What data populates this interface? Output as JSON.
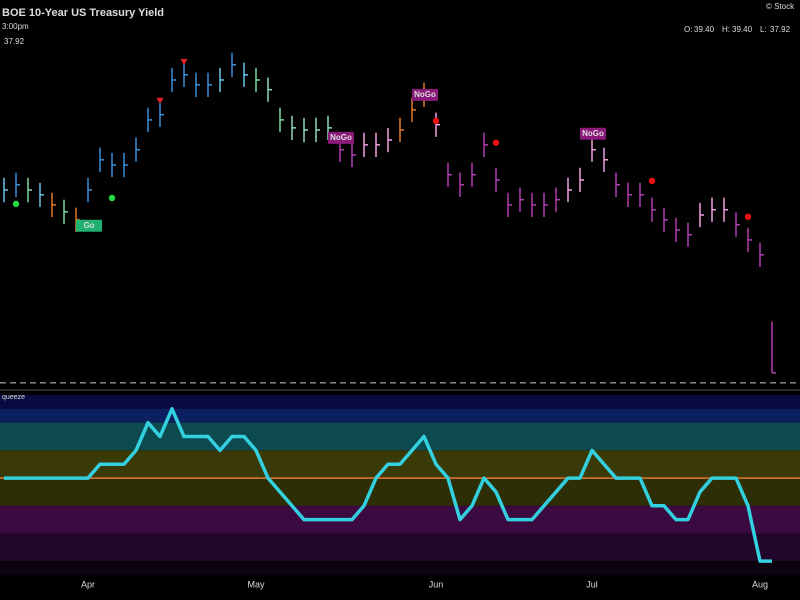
{
  "chart_data": [
    {
      "type": "ohlc",
      "title": "BOE 10-Year US Treasury Yield",
      "time": "3:00pm",
      "last": "37.92",
      "source": "© Stock",
      "ohlc": [
        {
          "label": "O:",
          "value": "39.40"
        },
        {
          "label": "H:",
          "value": "39.40"
        },
        {
          "label": "L:",
          "value": "37.92"
        }
      ],
      "categories": [
        null,
        null,
        null,
        null,
        null,
        null,
        null,
        "Apr",
        null,
        null,
        null,
        null,
        null,
        null,
        null,
        null,
        null,
        null,
        null,
        null,
        null,
        "May",
        null,
        null,
        null,
        null,
        null,
        null,
        null,
        null,
        null,
        null,
        null,
        null,
        null,
        null,
        "Jun",
        null,
        null,
        null,
        null,
        null,
        null,
        null,
        null,
        null,
        null,
        null,
        null,
        "Jul",
        null,
        null,
        null,
        null,
        null,
        null,
        null,
        null,
        null,
        null,
        null,
        null,
        null,
        "Aug",
        null
      ],
      "high": [
        43.54,
        43.69,
        43.54,
        43.4,
        43.11,
        42.91,
        42.68,
        43.54,
        44.41,
        44.26,
        44.26,
        44.7,
        45.56,
        45.71,
        46.71,
        46.86,
        46.57,
        46.57,
        46.71,
        47.15,
        46.86,
        46.71,
        46.43,
        45.56,
        45.33,
        45.27,
        45.27,
        45.33,
        44.7,
        44.55,
        44.84,
        44.84,
        44.98,
        45.27,
        45.85,
        46.28,
        45.42,
        43.98,
        43.69,
        43.98,
        44.84,
        43.83,
        43.11,
        43.26,
        43.11,
        43.11,
        43.26,
        43.54,
        43.83,
        44.7,
        44.41,
        43.69,
        43.4,
        43.4,
        42.97,
        42.68,
        42.39,
        42.25,
        42.82,
        42.97,
        42.97,
        42.54,
        42.1,
        41.67,
        39.4
      ],
      "low": [
        42.84,
        42.99,
        42.84,
        42.7,
        42.41,
        42.21,
        41.98,
        42.84,
        43.71,
        43.56,
        43.56,
        44.0,
        44.86,
        45.01,
        46.01,
        46.16,
        45.87,
        45.87,
        46.01,
        46.45,
        46.16,
        46.01,
        45.73,
        44.86,
        44.63,
        44.57,
        44.57,
        44.63,
        44.0,
        43.85,
        44.14,
        44.14,
        44.28,
        44.57,
        45.15,
        45.58,
        44.72,
        43.28,
        42.99,
        43.28,
        44.14,
        43.13,
        42.41,
        42.56,
        42.41,
        42.41,
        42.56,
        42.84,
        43.13,
        44.0,
        43.71,
        42.99,
        42.7,
        42.7,
        42.27,
        41.98,
        41.69,
        41.55,
        42.12,
        42.27,
        42.27,
        41.84,
        41.4,
        40.97,
        37.92
      ],
      "close": [
        43.19,
        43.34,
        43.19,
        43.05,
        42.76,
        42.56,
        42.33,
        43.19,
        44.06,
        43.91,
        43.91,
        44.35,
        45.21,
        45.36,
        46.36,
        46.51,
        46.22,
        46.22,
        46.36,
        46.8,
        46.51,
        46.36,
        46.08,
        45.21,
        44.98,
        44.92,
        44.92,
        44.98,
        44.35,
        44.2,
        44.49,
        44.49,
        44.63,
        44.92,
        45.5,
        45.93,
        45.07,
        43.63,
        43.34,
        43.63,
        44.49,
        43.48,
        42.76,
        42.91,
        42.76,
        42.76,
        42.91,
        43.19,
        43.48,
        44.35,
        44.06,
        43.34,
        43.05,
        43.05,
        42.62,
        42.33,
        42.04,
        41.9,
        42.47,
        42.62,
        42.62,
        42.19,
        41.75,
        41.32,
        37.92
      ],
      "bar_colors": [
        "#6fc3e8",
        "#3a8fd9",
        "#7ed9a0",
        "#6fc3e8",
        "#e07b2a",
        "#7ed9a0",
        "#e07b2a",
        "#3a8fd9",
        "#3a8fd9",
        "#3a8fd9",
        "#3a8fd9",
        "#3a8fd9",
        "#3a8fd9",
        "#3a8fd9",
        "#3a8fd9",
        "#3a8fd9",
        "#3a8fd9",
        "#3a8fd9",
        "#6fc3e8",
        "#3a8fd9",
        "#6fc3e8",
        "#7ed9a0",
        "#8fd9c8",
        "#7ed9a0",
        "#8fd9c8",
        "#8fd9c8",
        "#8fd9c8",
        "#8fd9c8",
        "#b03fb0",
        "#b03fb0",
        "#f0a0e0",
        "#f0a0e0",
        "#f0a0e0",
        "#e07b2a",
        "#e07b2a",
        "#e07b2a",
        "#f0a0e0",
        "#b03fb0",
        "#b03fb0",
        "#b03fb0",
        "#b03fb0",
        "#b03fb0",
        "#b03fb0",
        "#b03fb0",
        "#b03fb0",
        "#b03fb0",
        "#b03fb0",
        "#f0a0e0",
        "#f0a0e0",
        "#f0a0e0",
        "#f0a0e0",
        "#b03fb0",
        "#b03fb0",
        "#b03fb0",
        "#b03fb0",
        "#b03fb0",
        "#b03fb0",
        "#b03fb0",
        "#f0a0e0",
        "#f0a0e0",
        "#f0a0e0",
        "#b03fb0",
        "#b03fb0",
        "#b03fb0",
        "#b03fb0"
      ],
      "labels": [
        {
          "index": 7,
          "value": 42.16,
          "label": "Go",
          "color": "#20b070"
        },
        {
          "index": 28,
          "value": 44.69,
          "label": "NoGo",
          "color": "#8a1a7a"
        },
        {
          "index": 35,
          "value": 45.93,
          "label": "NoGo",
          "color": "#8a1a7a"
        },
        {
          "index": 49,
          "value": 44.81,
          "label": "NoGo",
          "color": "#8a1a7a"
        }
      ],
      "markers": [
        {
          "index": 1,
          "value": 42.79,
          "shape": "dot",
          "color": "#22dd44"
        },
        {
          "index": 9,
          "value": 42.96,
          "shape": "dot",
          "color": "#22dd44"
        },
        {
          "index": 13,
          "value": 45.76,
          "shape": "triangle",
          "color": "#ee2222"
        },
        {
          "index": 15,
          "value": 46.88,
          "shape": "triangle",
          "color": "#ee2222"
        },
        {
          "index": 36,
          "value": 45.18,
          "shape": "dot",
          "color": "#ee1111"
        },
        {
          "index": 41,
          "value": 44.55,
          "shape": "dot",
          "color": "#ee1111"
        },
        {
          "index": 54,
          "value": 43.45,
          "shape": "dot",
          "color": "#ee1111"
        },
        {
          "index": 62,
          "value": 42.42,
          "shape": "dot",
          "color": "#ee1111"
        }
      ],
      "reference_line": 37.63,
      "ylim": [
        37.57,
        47.57
      ]
    },
    {
      "type": "oscillator",
      "label": "queeze",
      "color": "#33d0e0",
      "zero_color": "#e07b2a",
      "zero_line": 0,
      "bands": [
        {
          "from": 6,
          "to": 5,
          "color": "#0a0a40"
        },
        {
          "from": 5,
          "to": 4,
          "color": "#0c2060"
        },
        {
          "from": 4,
          "to": 2,
          "color": "#0d4a50"
        },
        {
          "from": 2,
          "to": 0,
          "color": "#3a3a08"
        },
        {
          "from": 0,
          "to": -2,
          "color": "#2e2e06"
        },
        {
          "from": -2,
          "to": -4,
          "color": "#3a0a40"
        },
        {
          "from": -4,
          "to": -6,
          "color": "#22062a"
        },
        {
          "from": -6,
          "to": -7,
          "color": "#0d020f"
        }
      ],
      "values": [
        0,
        0,
        0,
        0,
        0,
        0,
        0,
        0,
        1,
        1,
        1,
        2,
        4,
        3,
        5,
        3,
        3,
        3,
        2,
        3,
        3,
        2,
        0,
        -1,
        -2,
        -3,
        -3,
        -3,
        -3,
        -3,
        -2,
        0,
        1,
        1,
        2,
        3,
        1,
        0,
        -3,
        -2,
        0,
        -1,
        -3,
        -3,
        -3,
        -2,
        -1,
        0,
        0,
        2,
        1,
        0,
        0,
        0,
        -2,
        -2,
        -3,
        -3,
        -1,
        0,
        0,
        0,
        -2,
        -6,
        -6
      ],
      "ylim": [
        -7,
        6
      ]
    }
  ]
}
